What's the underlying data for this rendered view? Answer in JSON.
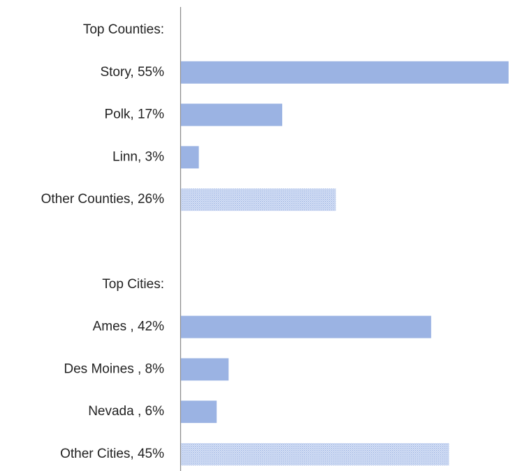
{
  "chart_data": {
    "type": "hbar",
    "categories": [
      "Top Counties:",
      "Story, 55%",
      "Polk, 17%",
      "Linn, 3%",
      "Other Counties, 26%",
      null,
      "Top Cities:",
      "Ames , 42%",
      "Des Moines , 8%",
      "Nevada , 6%",
      "Other Cities, 45%"
    ],
    "values": [
      null,
      55,
      17,
      3,
      26,
      null,
      null,
      42,
      8,
      6,
      45
    ],
    "patterns": [
      null,
      "solid",
      "solid",
      "solid",
      "dotted",
      null,
      null,
      "solid",
      "solid",
      "solid",
      "dotted"
    ],
    "color": "#9bb3e3",
    "xlim": [
      0,
      55
    ]
  }
}
